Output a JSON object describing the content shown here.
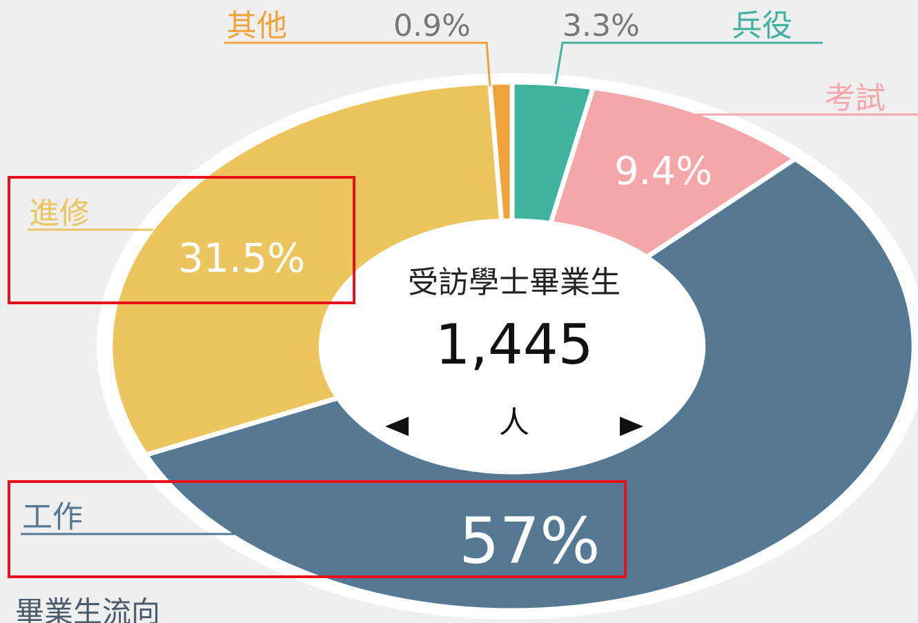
{
  "chart_data": {
    "type": "donut",
    "categories": [
      "兵役",
      "考試",
      "工作",
      "進修",
      "其他"
    ],
    "values": [
      3.3,
      9.4,
      57,
      31.5,
      0.9
    ],
    "value_labels": [
      "3.3%",
      "9.4%",
      "57%",
      "31.5%",
      "0.9%"
    ],
    "colors": [
      "#3fb39e",
      "#f4a6a8",
      "#557893",
      "#ecc55e",
      "#f0a23a"
    ],
    "center_label": "受訪學士畢業生",
    "center_value": "1,445",
    "center_unit": "人",
    "footer": "畢業生流向"
  }
}
